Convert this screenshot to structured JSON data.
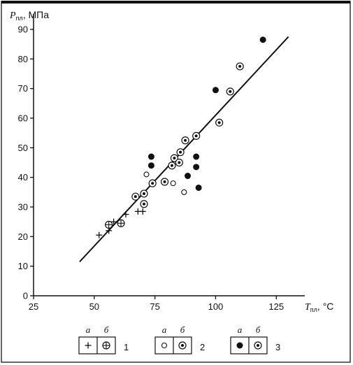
{
  "chart_data": {
    "type": "scatter",
    "y_axis": {
      "symbol": "P",
      "subscript": "пл",
      "unit": ", МПа",
      "ylim": [
        0,
        90
      ],
      "ticks": [
        0,
        10,
        20,
        30,
        40,
        50,
        60,
        70,
        80,
        90
      ]
    },
    "x_axis": {
      "symbol": "T",
      "subscript": "пл",
      "unit": ", °С",
      "xlim": [
        25,
        135
      ],
      "ticks": [
        25,
        50,
        75,
        100,
        125
      ]
    },
    "grid": false,
    "trend_line": {
      "from": [
        44,
        11.5
      ],
      "to": [
        130,
        87.5
      ]
    },
    "series": [
      {
        "marker": "plus",
        "points": [
          [
            52,
            20.5
          ],
          [
            56,
            22
          ],
          [
            58,
            25
          ],
          [
            63,
            27.5
          ],
          [
            68,
            28.5
          ],
          [
            70,
            28.5
          ]
        ]
      },
      {
        "marker": "circle-plus",
        "points": [
          [
            56,
            24
          ],
          [
            61,
            24.5
          ]
        ]
      },
      {
        "marker": "open-circle",
        "points": [
          [
            71.5,
            41
          ],
          [
            82.5,
            38
          ],
          [
            87,
            35
          ]
        ]
      },
      {
        "marker": "circle-dot",
        "points": [
          [
            67,
            33.5
          ],
          [
            70.5,
            34.5
          ],
          [
            70.5,
            31
          ],
          [
            74,
            38
          ],
          [
            79,
            38.5
          ],
          [
            82,
            44
          ],
          [
            83,
            46.5
          ],
          [
            85,
            45
          ],
          [
            85.5,
            48.5
          ],
          [
            87.5,
            52.5
          ],
          [
            92,
            54
          ],
          [
            101.5,
            58.5
          ],
          [
            106,
            69
          ],
          [
            110,
            77.5
          ]
        ]
      },
      {
        "marker": "filled-circle",
        "points": [
          [
            73.5,
            47
          ],
          [
            73.5,
            44
          ],
          [
            88.5,
            40.5
          ],
          [
            92,
            47
          ],
          [
            92,
            43.5
          ],
          [
            93,
            36.5
          ],
          [
            100,
            69.5
          ],
          [
            119.5,
            86.5
          ]
        ]
      }
    ],
    "legend": {
      "placement": "bottom",
      "groups": [
        {
          "number": "1",
          "sub_a": "а",
          "sub_b": "б",
          "marker_a": "plus",
          "marker_b": "circle-plus"
        },
        {
          "number": "2",
          "sub_a": "а",
          "sub_b": "б",
          "marker_a": "open-circle",
          "marker_b": "circle-dot"
        },
        {
          "number": "3",
          "sub_a": "а",
          "sub_b": "б",
          "marker_a": "filled-circle",
          "marker_b": "circle-dot"
        }
      ]
    }
  }
}
